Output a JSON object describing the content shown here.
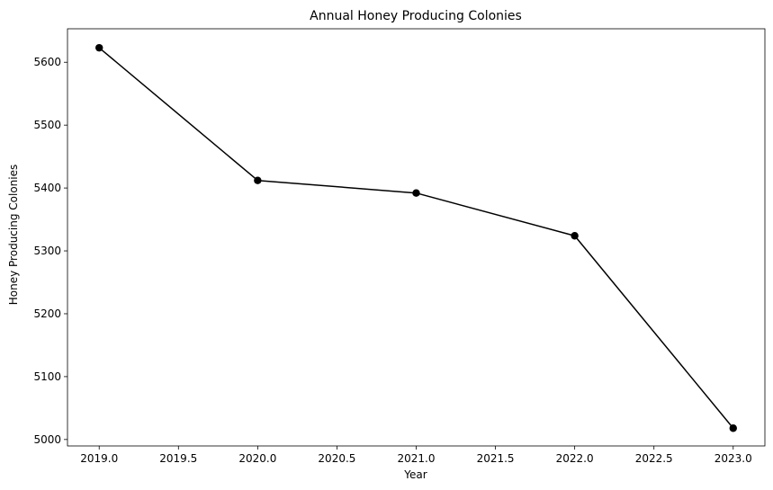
{
  "chart_data": {
    "type": "line",
    "title": "Annual Honey Producing Colonies",
    "xlabel": "Year",
    "ylabel": "Honey Producing Colonies",
    "x": [
      2019,
      2020,
      2021,
      2022,
      2023
    ],
    "series": [
      {
        "values": [
          5623,
          5412,
          5392,
          5324,
          5018
        ],
        "color": "#000000",
        "marker": "circle"
      }
    ],
    "xlim": [
      2018.8,
      2023.2
    ],
    "ylim": [
      4989.75,
      5653.25
    ],
    "xticks": [
      "2019.0",
      "2019.5",
      "2020.0",
      "2020.5",
      "2021.0",
      "2021.5",
      "2022.0",
      "2022.5",
      "2023.0"
    ],
    "yticks": [
      "5000",
      "5100",
      "5200",
      "5300",
      "5400",
      "5500",
      "5600"
    ],
    "grid": false,
    "legend": "none"
  }
}
